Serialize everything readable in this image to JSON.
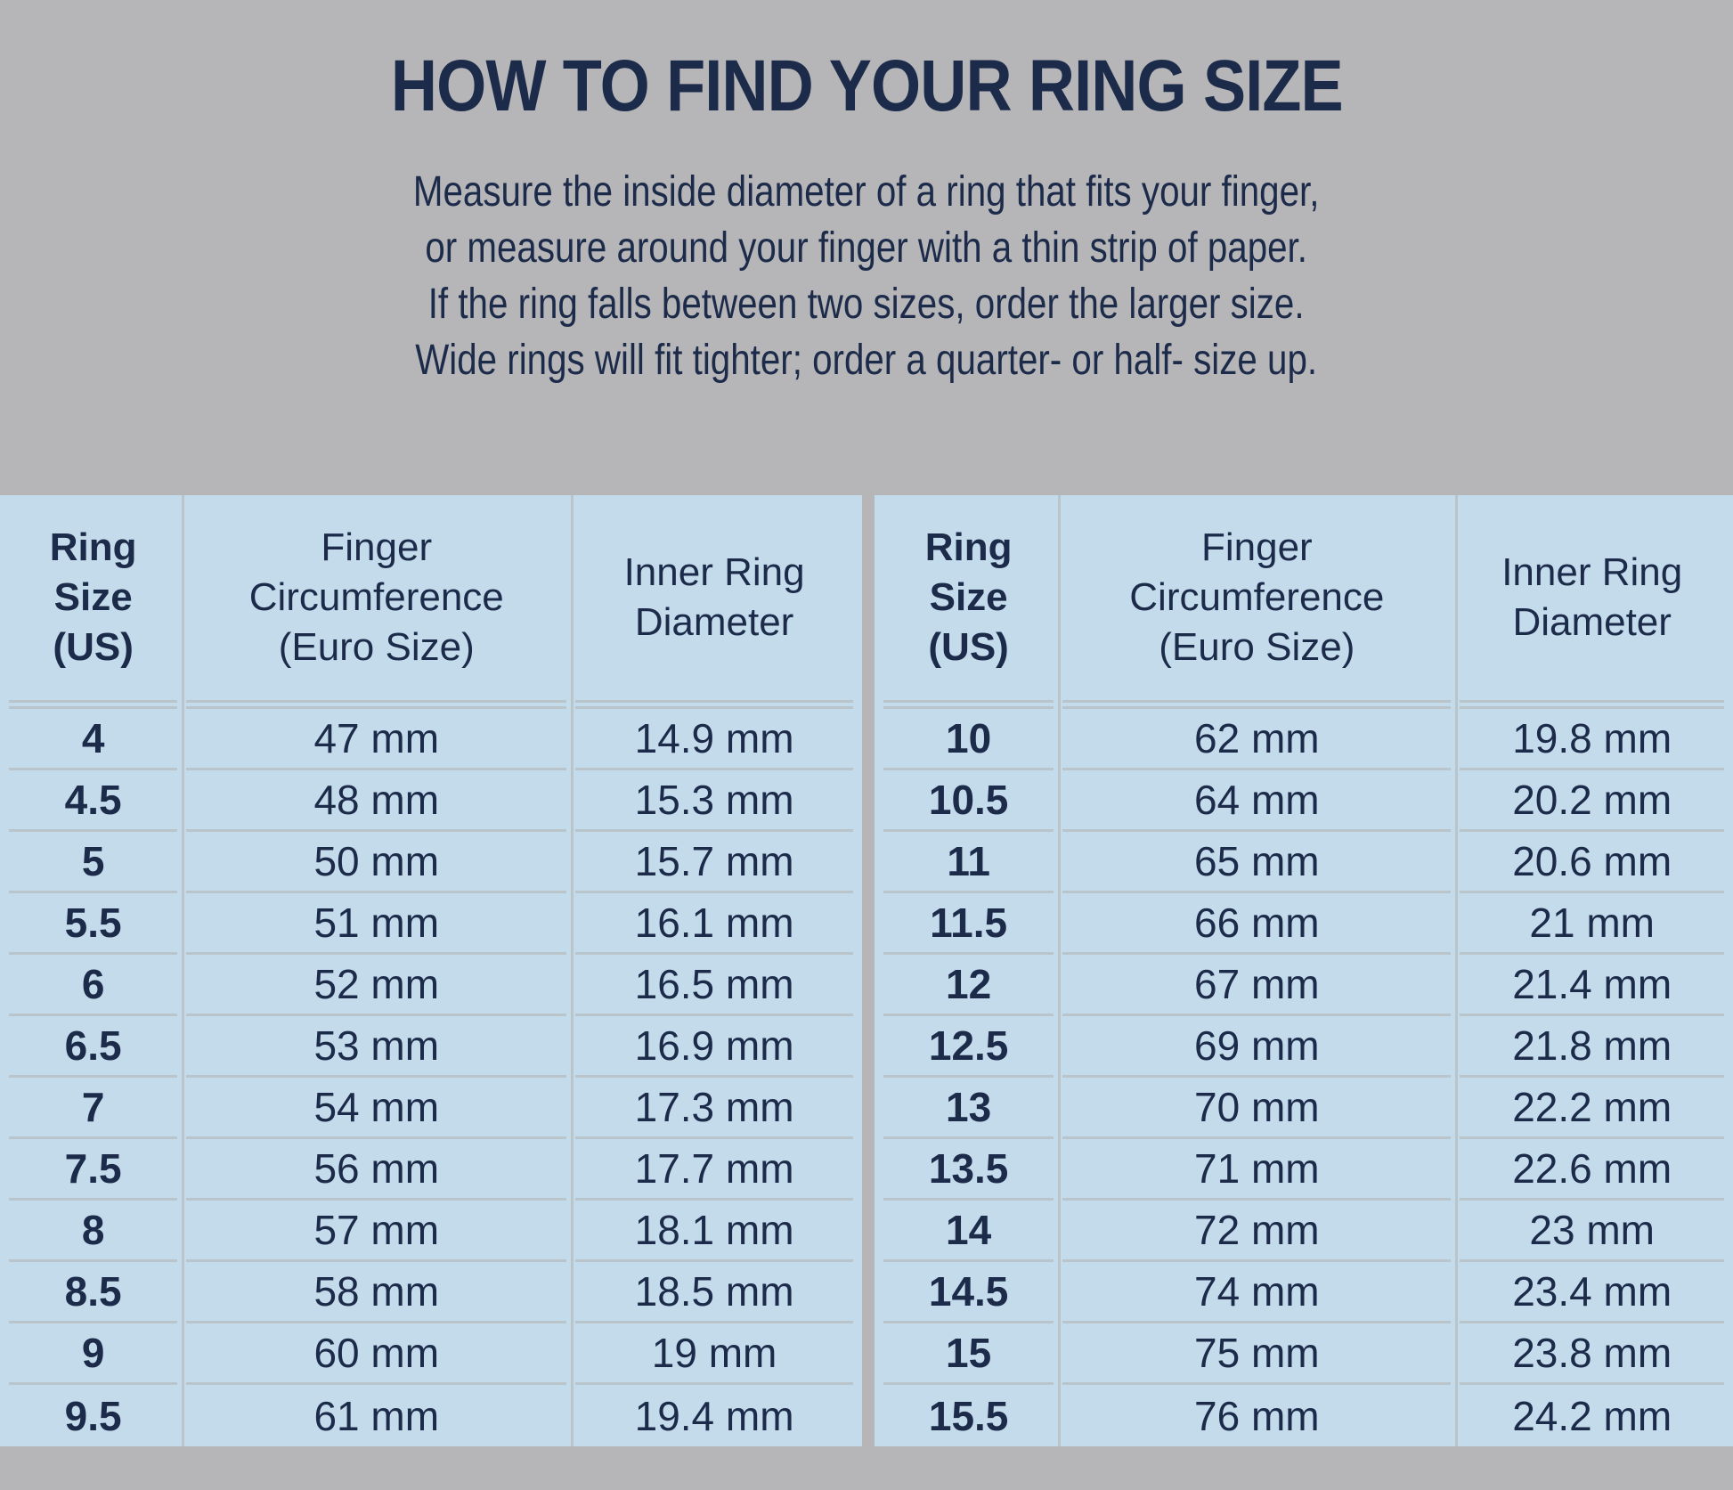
{
  "theme": {
    "bg_gray": "#b6b6b8",
    "table_blue": "#c3dbea",
    "text_navy": "#1d2b4a",
    "line_gray": "#b9c4cb"
  },
  "title": "HOW TO FIND YOUR RING SIZE",
  "intro_lines": [
    "Measure the inside diameter of a ring that fits your finger,",
    "or measure around your finger with a thin strip of paper.",
    "If the ring falls between two sizes, order the larger size.",
    "Wide rings will fit tighter; order a quarter- or half- size up."
  ],
  "tables": [
    {
      "columns": [
        "Ring\nSize\n(US)",
        "Finger\nCircumference\n(Euro Size)",
        "Inner Ring\nDiameter"
      ],
      "rows": [
        [
          "4",
          "47 mm",
          "14.9 mm"
        ],
        [
          "4.5",
          "48 mm",
          "15.3 mm"
        ],
        [
          "5",
          "50 mm",
          "15.7 mm"
        ],
        [
          "5.5",
          "51 mm",
          "16.1 mm"
        ],
        [
          "6",
          "52 mm",
          "16.5 mm"
        ],
        [
          "6.5",
          "53 mm",
          "16.9 mm"
        ],
        [
          "7",
          "54 mm",
          "17.3 mm"
        ],
        [
          "7.5",
          "56 mm",
          "17.7 mm"
        ],
        [
          "8",
          "57 mm",
          "18.1 mm"
        ],
        [
          "8.5",
          "58 mm",
          "18.5 mm"
        ],
        [
          "9",
          "60 mm",
          "19 mm"
        ],
        [
          "9.5",
          "61 mm",
          "19.4 mm"
        ]
      ]
    },
    {
      "columns": [
        "Ring\nSize\n(US)",
        "Finger\nCircumference\n(Euro Size)",
        "Inner Ring\nDiameter"
      ],
      "rows": [
        [
          "10",
          "62 mm",
          "19.8 mm"
        ],
        [
          "10.5",
          "64 mm",
          "20.2 mm"
        ],
        [
          "11",
          "65 mm",
          "20.6 mm"
        ],
        [
          "11.5",
          "66 mm",
          "21 mm"
        ],
        [
          "12",
          "67 mm",
          "21.4 mm"
        ],
        [
          "12.5",
          "69 mm",
          "21.8 mm"
        ],
        [
          "13",
          "70 mm",
          "22.2 mm"
        ],
        [
          "13.5",
          "71 mm",
          "22.6 mm"
        ],
        [
          "14",
          "72 mm",
          "23 mm"
        ],
        [
          "14.5",
          "74 mm",
          "23.4 mm"
        ],
        [
          "15",
          "75 mm",
          "23.8 mm"
        ],
        [
          "15.5",
          "76 mm",
          "24.2 mm"
        ]
      ]
    }
  ]
}
